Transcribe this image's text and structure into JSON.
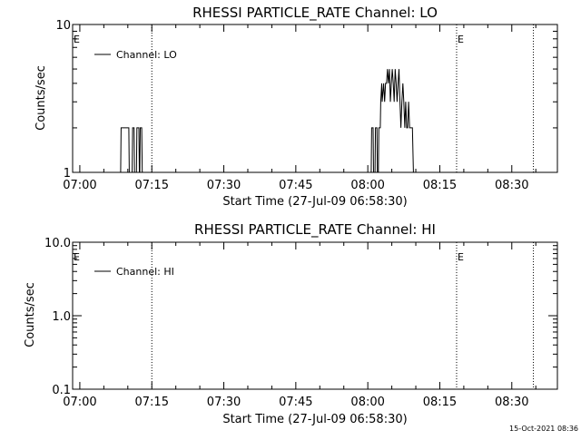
{
  "chart_data": [
    {
      "type": "line",
      "title": "RHESSI PARTICLE_RATE Channel: LO",
      "xlabel": "Start Time (27-Jul-09 06:58:30)",
      "ylabel": "Counts/sec",
      "yscale": "log",
      "ylim": [
        1,
        10
      ],
      "y_ticks": [
        {
          "value": 1,
          "label": "1"
        },
        {
          "value": 10,
          "label": "10"
        }
      ],
      "xlim": [
        "06:58:30",
        "08:39:30"
      ],
      "x_ticks": [
        "07:00",
        "07:15",
        "07:30",
        "07:45",
        "08:00",
        "08:15",
        "08:30"
      ],
      "grid": false,
      "legend_position": "top-left",
      "series": [
        {
          "name": "Channel: LO",
          "color": "#000000",
          "x": [
            "07:08:30",
            "07:08:36",
            "07:08:48",
            "07:10:12",
            "07:10:18",
            "07:10:54",
            "07:11:00",
            "07:11:18",
            "07:11:24",
            "07:11:48",
            "07:11:54",
            "07:12:18",
            "07:12:24",
            "07:12:30",
            "07:12:36",
            "07:12:54",
            "07:13:00",
            "07:13:18",
            "08:00:42",
            "08:00:48",
            "08:01:06",
            "08:01:12",
            "08:01:30",
            "08:01:36",
            "08:01:54",
            "08:02:00",
            "08:02:12",
            "08:02:18",
            "08:02:36",
            "08:02:42",
            "08:02:54",
            "08:03:00",
            "08:03:18",
            "08:03:30",
            "08:03:42",
            "08:03:54",
            "08:04:06",
            "08:04:18",
            "08:04:30",
            "08:04:42",
            "08:04:54",
            "08:05:06",
            "08:05:18",
            "08:05:30",
            "08:05:42",
            "08:05:54",
            "08:06:06",
            "08:06:18",
            "08:06:30",
            "08:06:42",
            "08:06:54",
            "08:07:06",
            "08:07:18",
            "08:07:30",
            "08:07:42",
            "08:07:54",
            "08:08:06",
            "08:08:18",
            "08:08:30",
            "08:08:42",
            "08:08:54",
            "08:09:06",
            "08:09:18",
            "08:09:30",
            "08:09:42",
            "08:09:54",
            "08:10:06",
            "08:10:18"
          ],
          "y": [
            1,
            2,
            2,
            2,
            1,
            1,
            2,
            2,
            1,
            1,
            2,
            2,
            1,
            1,
            2,
            2,
            1,
            1,
            1,
            2,
            2,
            1,
            1,
            2,
            2,
            1,
            1,
            2,
            2,
            3,
            4,
            3,
            4,
            3,
            4,
            4,
            5,
            4,
            5,
            3,
            4,
            5,
            4,
            3,
            5,
            4,
            3,
            4,
            5,
            3,
            2,
            3,
            4,
            3,
            2,
            3,
            2,
            2,
            3,
            2,
            2,
            2,
            2,
            1,
            1,
            1,
            1,
            1
          ]
        }
      ],
      "annotations": [
        {
          "x": "06:58:30",
          "label": "E"
        },
        {
          "x": "08:18:30",
          "label": "E"
        }
      ],
      "marker_lines_x": [
        "07:15:00",
        "08:18:30",
        "08:34:30"
      ]
    },
    {
      "type": "line",
      "title": "RHESSI PARTICLE_RATE Channel: HI",
      "xlabel": "Start Time (27-Jul-09 06:58:30)",
      "ylabel": "Counts/sec",
      "yscale": "log",
      "ylim": [
        0.1,
        10
      ],
      "y_ticks": [
        {
          "value": 0.1,
          "label": "0.1"
        },
        {
          "value": 1,
          "label": "1.0"
        },
        {
          "value": 10,
          "label": "10.0"
        }
      ],
      "xlim": [
        "06:58:30",
        "08:39:30"
      ],
      "x_ticks": [
        "07:00",
        "07:15",
        "07:30",
        "07:45",
        "08:00",
        "08:15",
        "08:30"
      ],
      "grid": false,
      "legend_position": "top-left",
      "series": [
        {
          "name": "Channel: HI",
          "color": "#000000",
          "x": [],
          "y": []
        }
      ],
      "annotations": [
        {
          "x": "06:58:30",
          "label": "E"
        },
        {
          "x": "08:18:30",
          "label": "E"
        }
      ],
      "marker_lines_x": [
        "07:15:00",
        "08:18:30",
        "08:34:30"
      ]
    }
  ],
  "footer": {
    "timestamp": "15-Oct-2021 08:36"
  }
}
